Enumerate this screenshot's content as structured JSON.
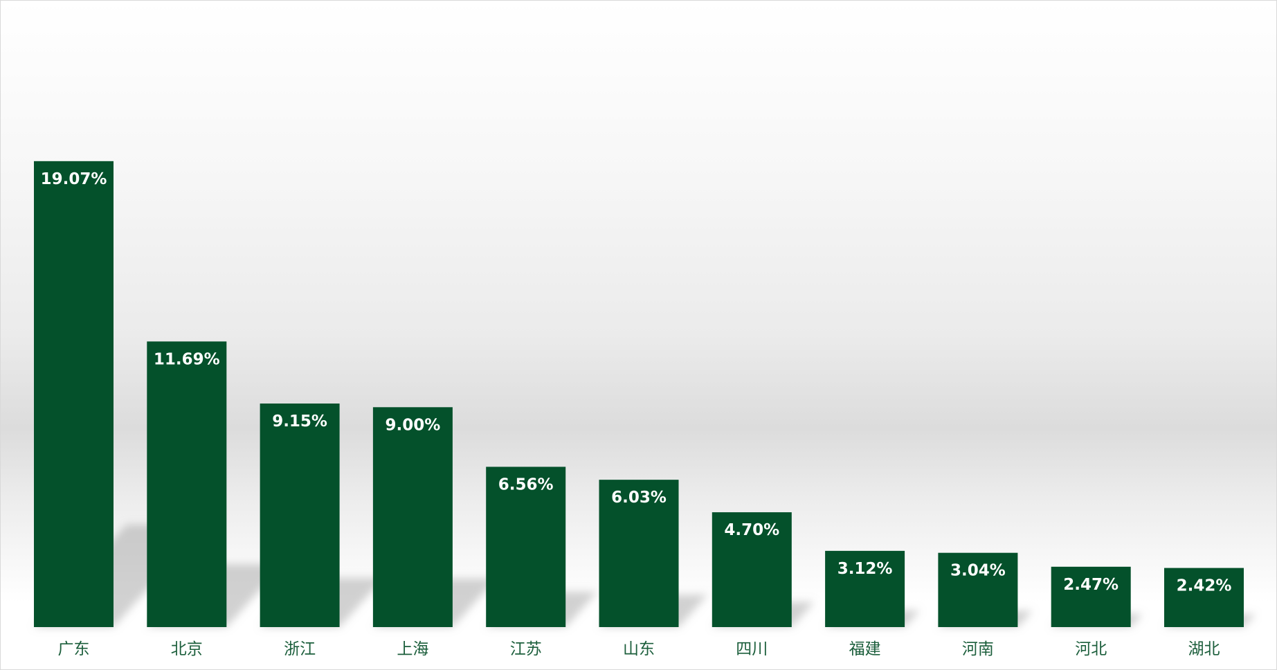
{
  "chart_data": {
    "type": "bar",
    "categories": [
      "广东",
      "北京",
      "浙江",
      "上海",
      "江苏",
      "山东",
      "四川",
      "福建",
      "河南",
      "河北",
      "湖北"
    ],
    "values": [
      19.07,
      11.69,
      9.15,
      9.0,
      6.56,
      6.03,
      4.7,
      3.12,
      3.04,
      2.47,
      2.42
    ],
    "value_labels": [
      "19.07%",
      "11.69%",
      "9.15%",
      "9.00%",
      "6.56%",
      "6.03%",
      "4.70%",
      "3.12%",
      "3.04%",
      "2.47%",
      "2.42%"
    ],
    "ylim": [
      0,
      25
    ],
    "grid": false,
    "legend": "none",
    "bar_color": "#04512b",
    "label_color": "#1b5e3b"
  }
}
